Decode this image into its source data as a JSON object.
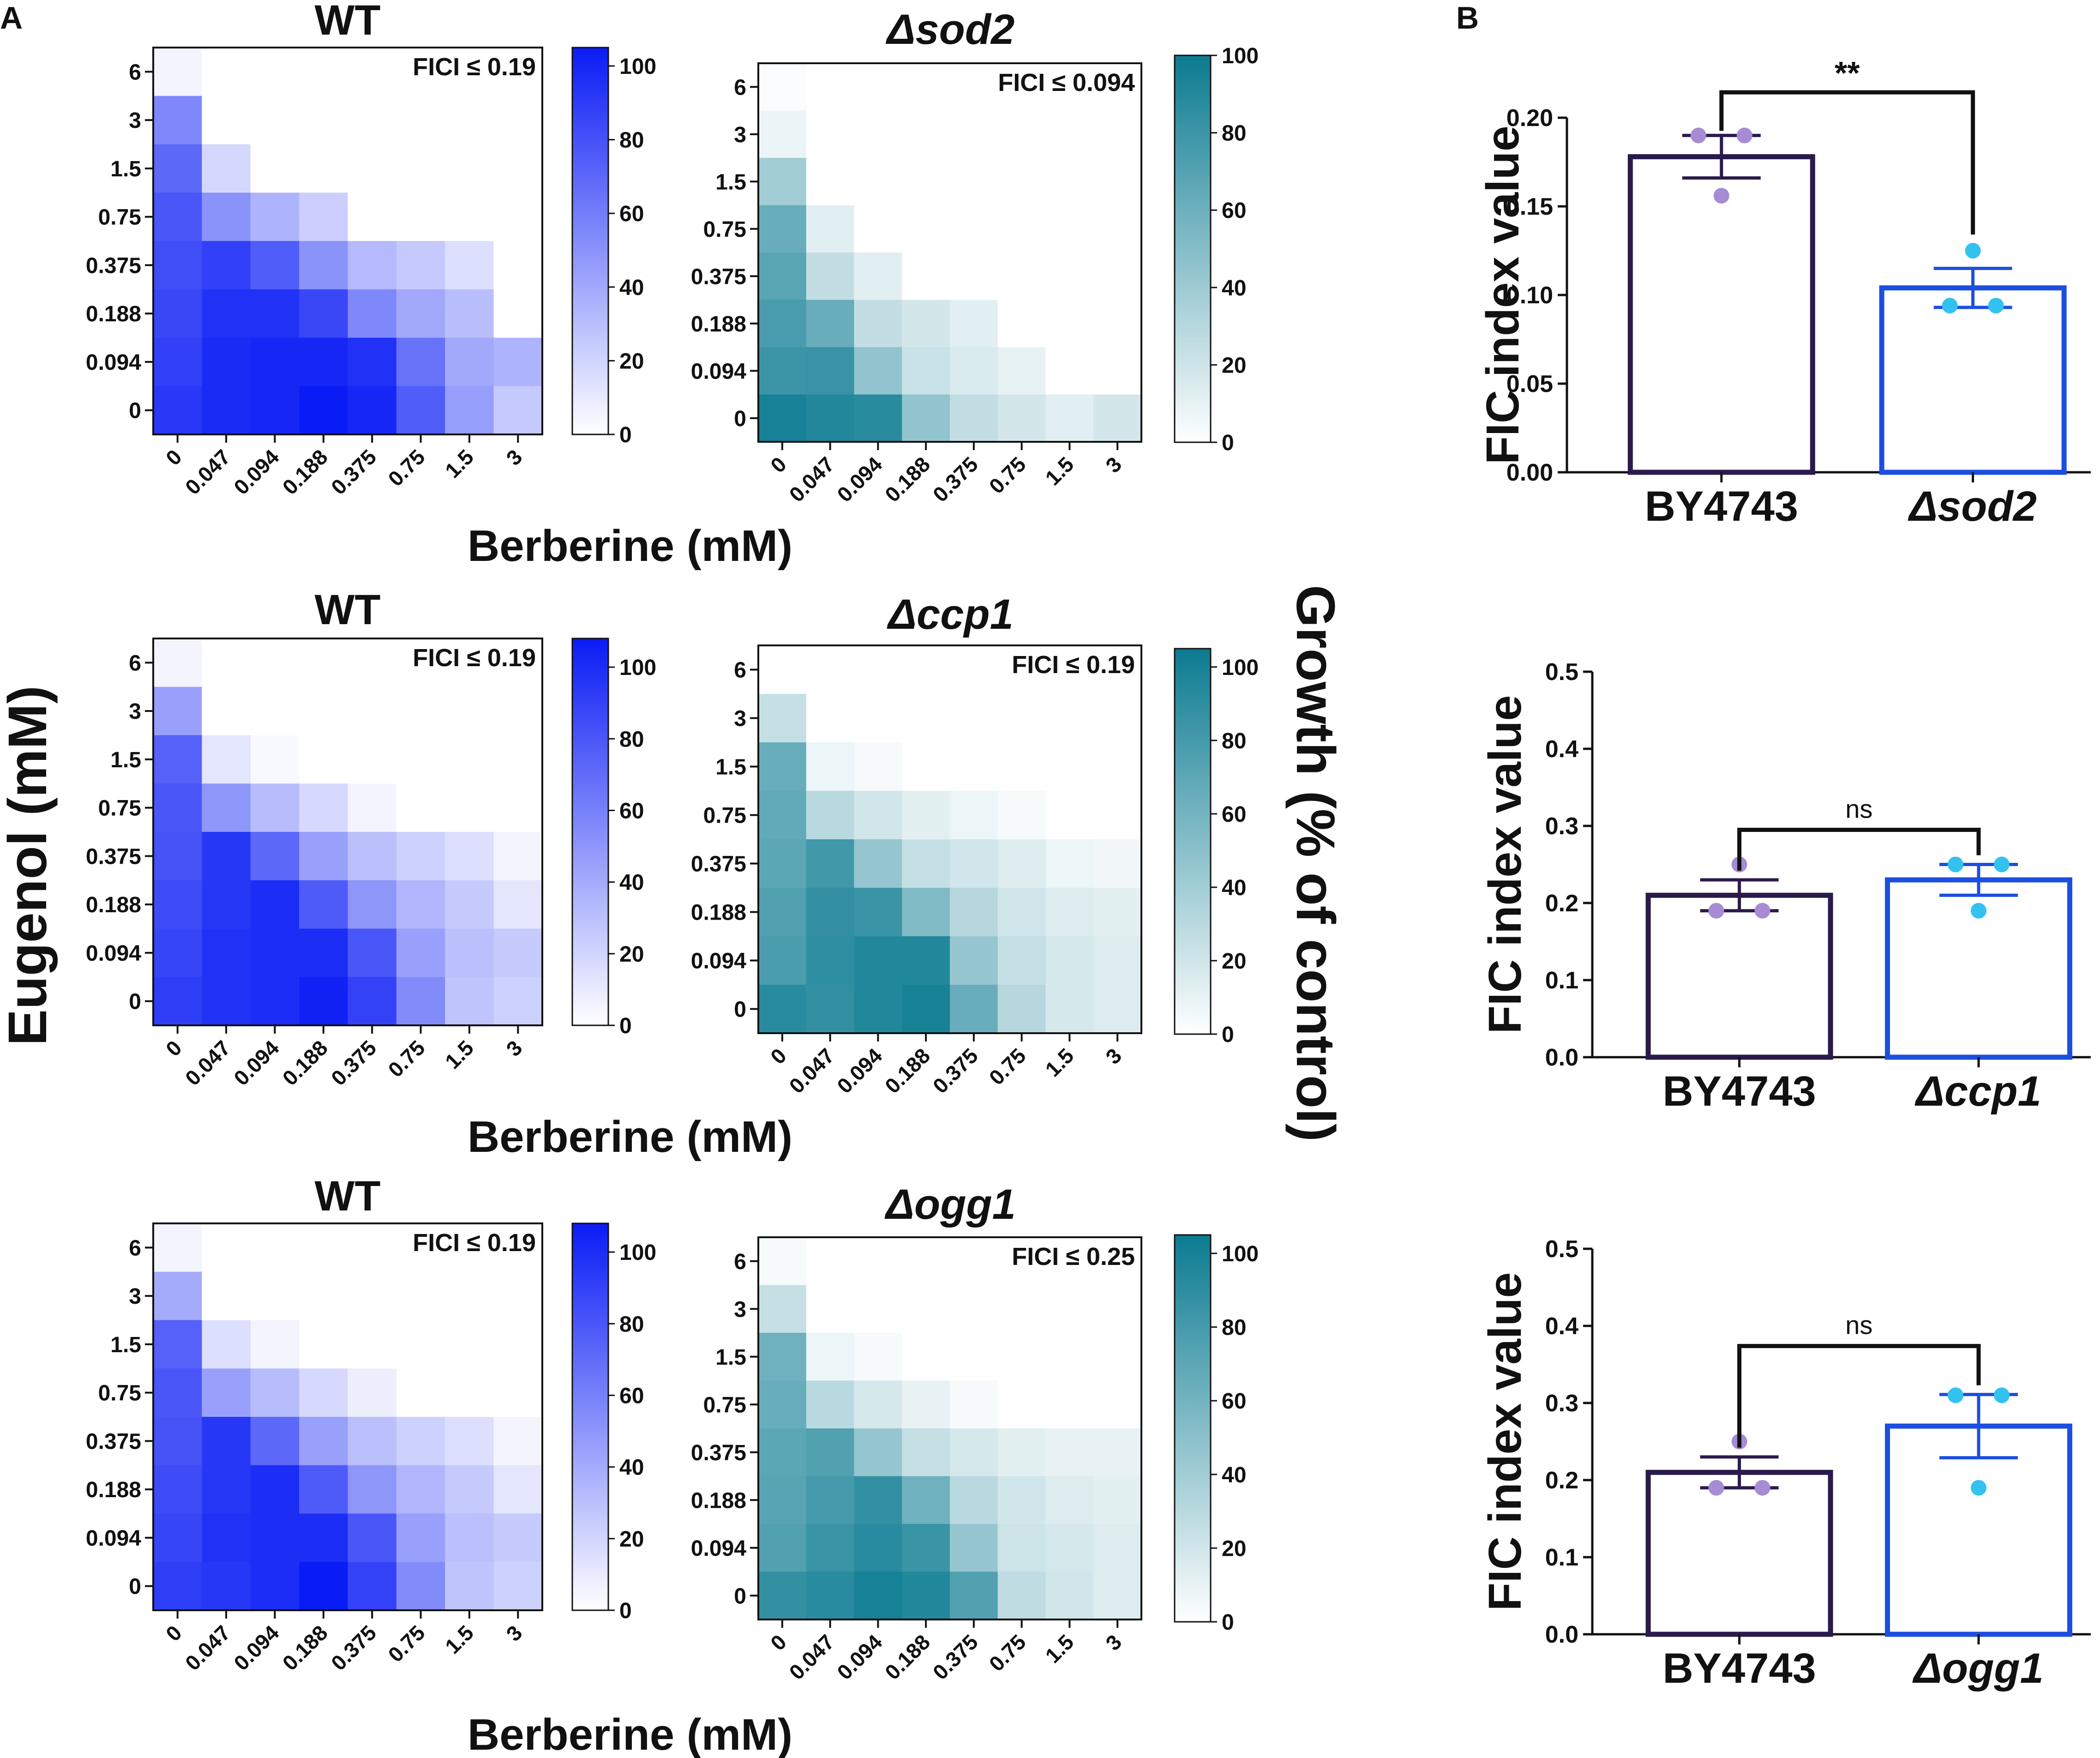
{
  "panel_labels": {
    "a": "A",
    "b": "B"
  },
  "shared": {
    "eugenol_axis_label": "Eugenol (mM)",
    "growth_axis_label": "Growth (% of control)",
    "berberine_axis_label": "Berberine (mM)",
    "fic_axis_label": "FIC index value"
  },
  "colors": {
    "wt_scale": "#0a1cf5",
    "mutant_scale": "#0b7b91",
    "bar_wt": "#2a1b4c",
    "bar_mut": "#1c4fe0",
    "dot_wt": "#a78bd4",
    "dot_mut": "#33c2f0"
  },
  "chart_data": [
    {
      "type": "heatmap",
      "id": "wt1",
      "title": "WT",
      "italic": false,
      "scale": "wt",
      "annotation": "FICI ≤ 0.19",
      "x_categories": [
        "0",
        "0.047",
        "0.094",
        "0.188",
        "0.375",
        "0.75",
        "1.5",
        "3"
      ],
      "y_categories": [
        "6",
        "3",
        "1.5",
        "0.75",
        "0.375",
        "0.188",
        "0.094",
        "0"
      ],
      "xlabel": "Berberine (mM)",
      "colorbar": {
        "ticks": [
          "0",
          "20",
          "40",
          "60",
          "80",
          "100"
        ],
        "min": 0,
        "max": 100,
        "top": 105
      },
      "values": [
        [
          5,
          0,
          0,
          0,
          0,
          0,
          0,
          0
        ],
        [
          55,
          0,
          0,
          0,
          0,
          0,
          0,
          0
        ],
        [
          70,
          18,
          0,
          0,
          0,
          0,
          0,
          0
        ],
        [
          78,
          50,
          35,
          22,
          0,
          0,
          0,
          0
        ],
        [
          82,
          88,
          75,
          50,
          32,
          25,
          15,
          0
        ],
        [
          85,
          95,
          95,
          85,
          55,
          40,
          30,
          0
        ],
        [
          88,
          98,
          100,
          100,
          95,
          65,
          40,
          35
        ],
        [
          92,
          98,
          100,
          105,
          100,
          75,
          45,
          25
        ]
      ]
    },
    {
      "type": "heatmap",
      "id": "sod2",
      "title": "Δsod2",
      "italic": true,
      "scale": "mut",
      "annotation": "FICI ≤ 0.094",
      "x_categories": [
        "0",
        "0.047",
        "0.094",
        "0.188",
        "0.375",
        "0.75",
        "1.5",
        "3"
      ],
      "y_categories": [
        "6",
        "3",
        "1.5",
        "0.75",
        "0.375",
        "0.188",
        "0.094",
        "0"
      ],
      "xlabel": "Berberine (mM)",
      "colorbar": {
        "ticks": [
          "0",
          "20",
          "40",
          "60",
          "80",
          "100"
        ],
        "min": 0,
        "max": 100,
        "top": 100
      },
      "values": [
        [
          2,
          0,
          0,
          0,
          0,
          0,
          0,
          0
        ],
        [
          8,
          0,
          0,
          0,
          0,
          0,
          0,
          0
        ],
        [
          38,
          0,
          0,
          0,
          0,
          0,
          0,
          0
        ],
        [
          62,
          12,
          0,
          0,
          0,
          0,
          0,
          0
        ],
        [
          68,
          25,
          12,
          0,
          0,
          0,
          0,
          0
        ],
        [
          75,
          62,
          25,
          18,
          12,
          0,
          0,
          0
        ],
        [
          80,
          82,
          45,
          22,
          15,
          10,
          0,
          0
        ],
        [
          95,
          90,
          88,
          45,
          25,
          18,
          12,
          18
        ]
      ]
    },
    {
      "type": "heatmap",
      "id": "wt2",
      "title": "WT",
      "italic": false,
      "scale": "wt",
      "annotation": "FICI ≤ 0.19",
      "x_categories": [
        "0",
        "0.047",
        "0.094",
        "0.188",
        "0.375",
        "0.75",
        "1.5",
        "3"
      ],
      "y_categories": [
        "6",
        "3",
        "1.5",
        "0.75",
        "0.375",
        "0.188",
        "0.094",
        "0"
      ],
      "xlabel": "Berberine (mM)",
      "colorbar": {
        "ticks": [
          "0",
          "20",
          "40",
          "60",
          "80",
          "100"
        ],
        "min": 0,
        "max": 100,
        "top": 108
      },
      "values": [
        [
          5,
          0,
          0,
          0,
          0,
          0,
          0,
          0
        ],
        [
          45,
          0,
          0,
          0,
          0,
          0,
          0,
          0
        ],
        [
          75,
          12,
          3,
          0,
          0,
          0,
          0,
          0
        ],
        [
          80,
          50,
          32,
          18,
          5,
          0,
          0,
          0
        ],
        [
          82,
          95,
          72,
          45,
          30,
          22,
          15,
          5
        ],
        [
          85,
          95,
          100,
          78,
          50,
          35,
          25,
          12
        ],
        [
          88,
          98,
          100,
          100,
          80,
          45,
          30,
          25
        ],
        [
          92,
          98,
          100,
          105,
          90,
          55,
          28,
          22
        ]
      ]
    },
    {
      "type": "heatmap",
      "id": "ccp1",
      "title": "Δccp1",
      "italic": true,
      "scale": "mut",
      "annotation": "FICI ≤ 0.19",
      "x_categories": [
        "0",
        "0.047",
        "0.094",
        "0.188",
        "0.375",
        "0.75",
        "1.5",
        "3"
      ],
      "y_categories": [
        "6",
        "3",
        "1.5",
        "0.75",
        "0.375",
        "0.188",
        "0.094",
        "0"
      ],
      "xlabel": "Berberine (mM)",
      "colorbar": {
        "ticks": [
          "0",
          "20",
          "40",
          "60",
          "80",
          "100"
        ],
        "min": 0,
        "max": 100,
        "top": 105
      },
      "values": [
        [
          0,
          0,
          0,
          0,
          0,
          0,
          0,
          0
        ],
        [
          25,
          0,
          0,
          0,
          0,
          0,
          0,
          0
        ],
        [
          65,
          8,
          4,
          0,
          0,
          0,
          0,
          0
        ],
        [
          68,
          30,
          20,
          12,
          8,
          4,
          0,
          0
        ],
        [
          70,
          82,
          45,
          25,
          20,
          15,
          8,
          6
        ],
        [
          75,
          88,
          85,
          55,
          32,
          20,
          15,
          12
        ],
        [
          78,
          90,
          95,
          95,
          45,
          25,
          18,
          15
        ],
        [
          92,
          88,
          95,
          100,
          65,
          32,
          18,
          15
        ]
      ]
    },
    {
      "type": "heatmap",
      "id": "wt3",
      "title": "WT",
      "italic": false,
      "scale": "wt",
      "annotation": "FICI ≤ 0.19",
      "x_categories": [
        "0",
        "0.047",
        "0.094",
        "0.188",
        "0.375",
        "0.75",
        "1.5",
        "3"
      ],
      "y_categories": [
        "6",
        "3",
        "1.5",
        "0.75",
        "0.375",
        "0.188",
        "0.094",
        "0"
      ],
      "xlabel": "Berberine (mM)",
      "colorbar": {
        "ticks": [
          "0",
          "20",
          "40",
          "60",
          "80",
          "100"
        ],
        "min": 0,
        "max": 100,
        "top": 108
      },
      "values": [
        [
          5,
          0,
          0,
          0,
          0,
          0,
          0,
          0
        ],
        [
          40,
          0,
          0,
          0,
          0,
          0,
          0,
          0
        ],
        [
          75,
          15,
          5,
          0,
          0,
          0,
          0,
          0
        ],
        [
          80,
          45,
          32,
          18,
          8,
          0,
          0,
          0
        ],
        [
          82,
          95,
          72,
          45,
          30,
          22,
          15,
          5
        ],
        [
          85,
          95,
          100,
          78,
          50,
          35,
          25,
          12
        ],
        [
          88,
          98,
          100,
          100,
          80,
          45,
          30,
          25
        ],
        [
          92,
          95,
          100,
          108,
          90,
          55,
          28,
          22
        ]
      ]
    },
    {
      "type": "heatmap",
      "id": "ogg1",
      "title": "Δogg1",
      "italic": true,
      "scale": "mut",
      "annotation": "FICI ≤ 0.25",
      "x_categories": [
        "0",
        "0.047",
        "0.094",
        "0.188",
        "0.375",
        "0.75",
        "1.5",
        "3"
      ],
      "y_categories": [
        "6",
        "3",
        "1.5",
        "0.75",
        "0.375",
        "0.188",
        "0.094",
        "0"
      ],
      "xlabel": "Berberine (mM)",
      "colorbar": {
        "ticks": [
          "0",
          "20",
          "40",
          "60",
          "80",
          "100"
        ],
        "min": 0,
        "max": 100,
        "top": 105
      },
      "values": [
        [
          4,
          0,
          0,
          0,
          0,
          0,
          0,
          0
        ],
        [
          25,
          0,
          0,
          0,
          0,
          0,
          0,
          0
        ],
        [
          62,
          8,
          4,
          0,
          0,
          0,
          0,
          0
        ],
        [
          65,
          30,
          18,
          10,
          4,
          0,
          0,
          0
        ],
        [
          70,
          75,
          45,
          25,
          18,
          12,
          10,
          10
        ],
        [
          72,
          80,
          88,
          62,
          30,
          20,
          15,
          12
        ],
        [
          75,
          85,
          92,
          85,
          45,
          22,
          18,
          15
        ],
        [
          88,
          92,
          100,
          95,
          75,
          28,
          20,
          15
        ]
      ]
    },
    {
      "type": "bar",
      "id": "bar1",
      "title": "",
      "ylabel": "FIC index value",
      "categories": [
        "BY4743",
        "Δsod2"
      ],
      "values": [
        0.178,
        0.104
      ],
      "errors": [
        0.012,
        0.011
      ],
      "points": [
        [
          0.19,
          0.19,
          0.156
        ],
        [
          0.125,
          0.094,
          0.094
        ]
      ],
      "ylim": [
        0,
        0.2
      ],
      "yticks": [
        "0.00",
        "0.05",
        "0.10",
        "0.15",
        "0.20"
      ],
      "significance": "**"
    },
    {
      "type": "bar",
      "id": "bar2",
      "title": "",
      "ylabel": "FIC index value",
      "categories": [
        "BY4743",
        "Δccp1"
      ],
      "values": [
        0.21,
        0.23
      ],
      "errors": [
        0.02,
        0.02
      ],
      "points": [
        [
          0.25,
          0.19,
          0.19
        ],
        [
          0.25,
          0.25,
          0.19
        ]
      ],
      "ylim": [
        0,
        0.5
      ],
      "yticks": [
        "0.0",
        "0.1",
        "0.2",
        "0.3",
        "0.4",
        "0.5"
      ],
      "significance": "ns"
    },
    {
      "type": "bar",
      "id": "bar3",
      "title": "",
      "ylabel": "FIC index value",
      "categories": [
        "BY4743",
        "Δogg1"
      ],
      "values": [
        0.21,
        0.27
      ],
      "errors": [
        0.02,
        0.041
      ],
      "points": [
        [
          0.25,
          0.19,
          0.19
        ],
        [
          0.31,
          0.31,
          0.19
        ]
      ],
      "ylim": [
        0,
        0.5
      ],
      "yticks": [
        "0.0",
        "0.1",
        "0.2",
        "0.3",
        "0.4",
        "0.5"
      ],
      "significance": "ns"
    }
  ]
}
